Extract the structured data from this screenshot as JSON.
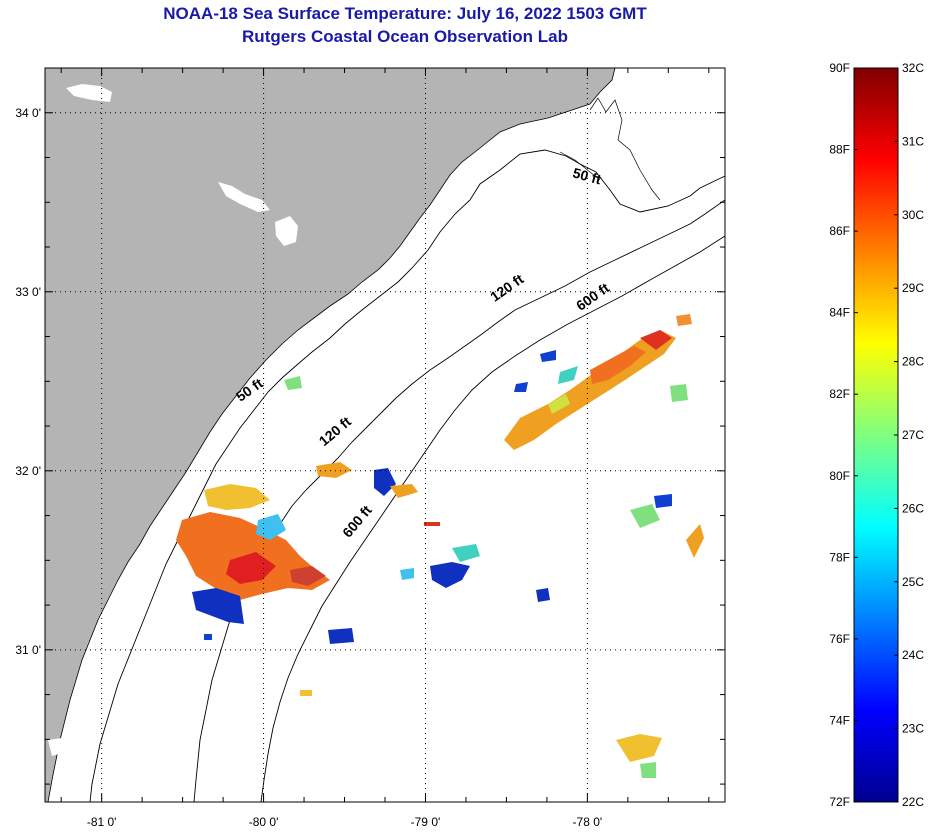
{
  "header": {
    "title": "NOAA-18 Sea Surface Temperature:  July 16, 2022 1503 GMT",
    "subtitle": "Rutgers Coastal Ocean Observation Lab"
  },
  "map": {
    "lon_range": [
      -81.35,
      -77.15
    ],
    "lat_range": [
      30.15,
      34.25
    ],
    "lon_ticks": [
      {
        "value": -81,
        "label": "-81 0'"
      },
      {
        "value": -80,
        "label": "-80 0'"
      },
      {
        "value": -79,
        "label": "-79 0'"
      },
      {
        "value": -78,
        "label": "-78 0'"
      }
    ],
    "lat_ticks": [
      {
        "value": 34,
        "label": "34 0'"
      },
      {
        "value": 33,
        "label": "33 0'"
      },
      {
        "value": 32,
        "label": "32 0'"
      },
      {
        "value": 31,
        "label": "31 0'"
      }
    ],
    "contour_labels": [
      {
        "text": "50 ft",
        "lon": -78.01,
        "lat": 33.62,
        "rotate": 15
      },
      {
        "text": "120 ft",
        "lon": -78.48,
        "lat": 33.0,
        "rotate": -35
      },
      {
        "text": "600 ft",
        "lon": -77.95,
        "lat": 32.95,
        "rotate": -35
      },
      {
        "text": "50 ft",
        "lon": -80.07,
        "lat": 32.43,
        "rotate": -35
      },
      {
        "text": "120 ft",
        "lon": -79.54,
        "lat": 32.2,
        "rotate": -40
      },
      {
        "text": "600 ft",
        "lon": -79.4,
        "lat": 31.7,
        "rotate": -50
      }
    ],
    "colors": {
      "land": "#b4b4b4",
      "ocean": "#ffffff",
      "coast": "#000000",
      "grid": "#000000"
    }
  },
  "colorbar": {
    "f_labels": [
      "90F",
      "88F",
      "86F",
      "84F",
      "82F",
      "80F",
      "78F",
      "76F",
      "74F",
      "72F"
    ],
    "c_labels": [
      "32C",
      "31C",
      "30C",
      "29C",
      "28C",
      "27C",
      "26C",
      "25C",
      "24C",
      "23C",
      "22C"
    ],
    "f_range": [
      72,
      90
    ],
    "c_range": [
      22,
      32
    ],
    "stops": [
      "#00008f",
      "#0000ff",
      "#0080ff",
      "#00ffff",
      "#80ff80",
      "#ffff00",
      "#ff8000",
      "#ff0000",
      "#800000"
    ]
  }
}
